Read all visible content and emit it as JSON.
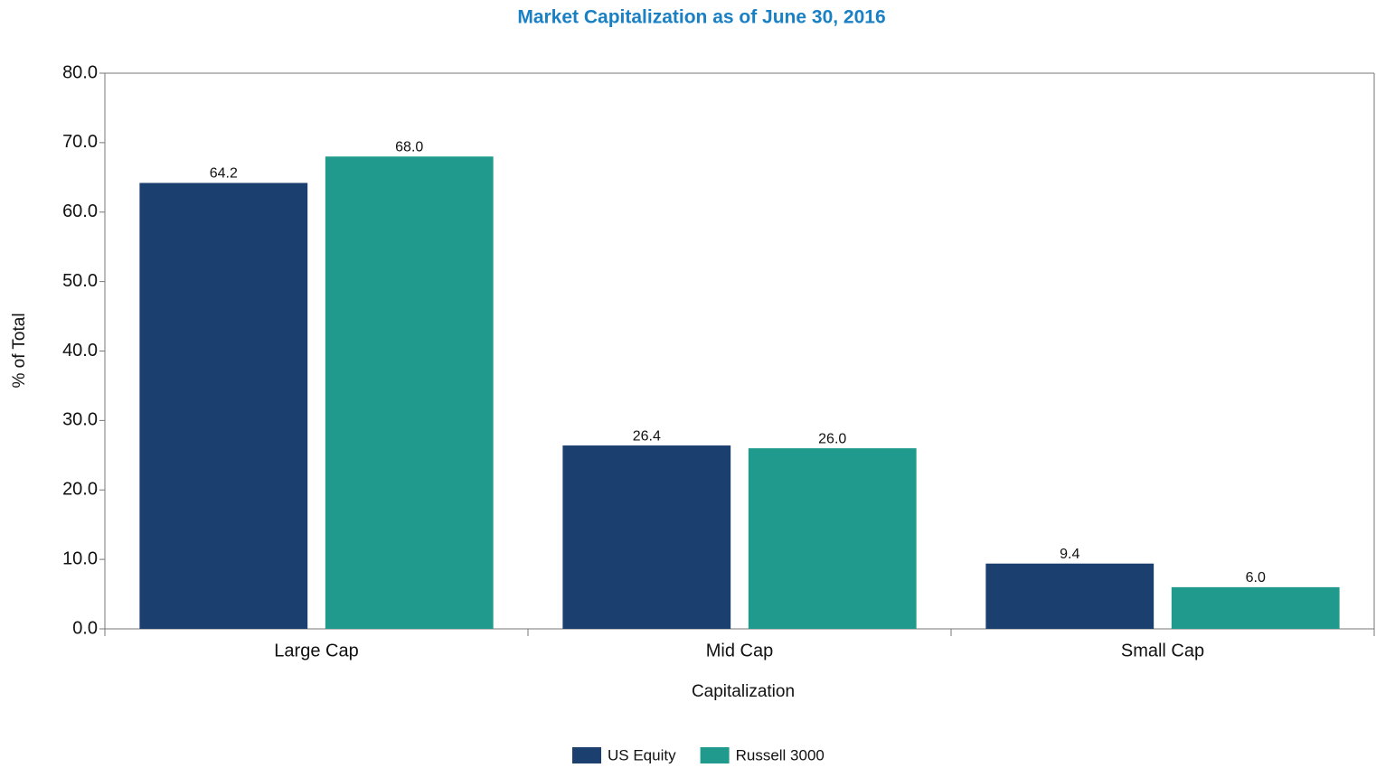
{
  "chart_data": {
    "type": "bar",
    "title": "Market Capitalization as of June 30, 2016",
    "x_label": "Capitalization",
    "y_label": "% of Total",
    "categories": [
      "Large Cap",
      "Mid Cap",
      "Small Cap"
    ],
    "series": [
      {
        "name": "US Equity",
        "color": "#1b3f6f",
        "values": [
          64.2,
          26.4,
          9.4
        ],
        "value_labels": [
          "64.2",
          "26.4",
          "9.4"
        ]
      },
      {
        "name": "Russell 3000",
        "color": "#1f9a8c",
        "values": [
          68,
          26,
          6
        ],
        "value_labels": [
          "68.0",
          "26.0",
          "6.0"
        ]
      }
    ],
    "ylim": [
      0,
      80
    ],
    "yticks": [
      {
        "value": 0,
        "label": "0.0"
      },
      {
        "value": 10,
        "label": "10.0"
      },
      {
        "value": 20,
        "label": "20.0"
      },
      {
        "value": 30,
        "label": "30.0"
      },
      {
        "value": 40,
        "label": "40.0"
      },
      {
        "value": 50,
        "label": "50.0"
      },
      {
        "value": 60,
        "label": "60.0"
      },
      {
        "value": 70,
        "label": "70.0"
      },
      {
        "value": 80,
        "label": "80.0"
      }
    ],
    "grid": false,
    "legend": "bottom"
  }
}
